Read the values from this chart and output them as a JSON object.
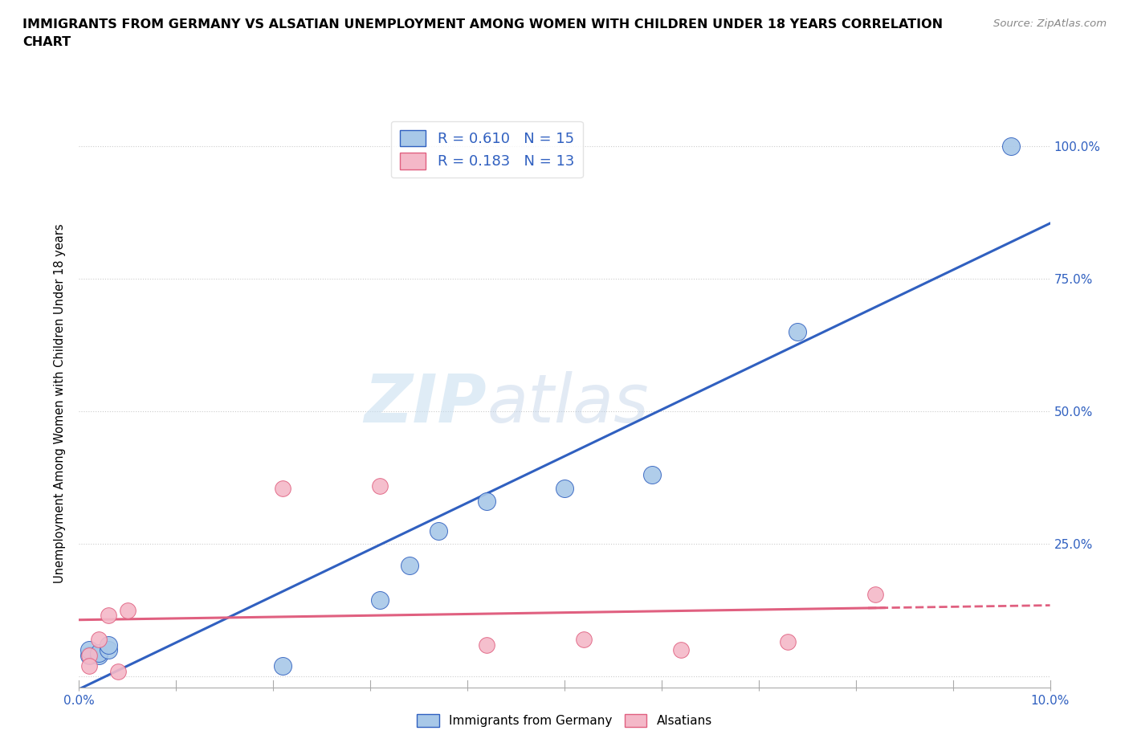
{
  "title_line1": "IMMIGRANTS FROM GERMANY VS ALSATIAN UNEMPLOYMENT AMONG WOMEN WITH CHILDREN UNDER 18 YEARS CORRELATION",
  "title_line2": "CHART",
  "source": "Source: ZipAtlas.com",
  "ylabel": "Unemployment Among Women with Children Under 18 years",
  "xlim": [
    0.0,
    0.1
  ],
  "ylim": [
    -0.02,
    1.05
  ],
  "xticks": [
    0.0,
    0.01,
    0.02,
    0.03,
    0.04,
    0.05,
    0.06,
    0.07,
    0.08,
    0.09,
    0.1
  ],
  "xticklabels": [
    "0.0%",
    "",
    "",
    "",
    "",
    "",
    "",
    "",
    "",
    "",
    "10.0%"
  ],
  "yticks": [
    0.0,
    0.25,
    0.5,
    0.75,
    1.0
  ],
  "yticklabels_right": [
    "",
    "25.0%",
    "50.0%",
    "75.0%",
    "100.0%"
  ],
  "germany_x": [
    0.001,
    0.001,
    0.002,
    0.002,
    0.003,
    0.003,
    0.021,
    0.031,
    0.034,
    0.037,
    0.042,
    0.05,
    0.059,
    0.074,
    0.096
  ],
  "germany_y": [
    0.04,
    0.05,
    0.04,
    0.045,
    0.05,
    0.06,
    0.02,
    0.145,
    0.21,
    0.275,
    0.33,
    0.355,
    0.38,
    0.65,
    1.0
  ],
  "alsatian_x": [
    0.001,
    0.001,
    0.002,
    0.003,
    0.004,
    0.005,
    0.021,
    0.031,
    0.042,
    0.052,
    0.062,
    0.073,
    0.082
  ],
  "alsatian_y": [
    0.04,
    0.02,
    0.07,
    0.115,
    0.01,
    0.125,
    0.355,
    0.36,
    0.06,
    0.07,
    0.05,
    0.065,
    0.155
  ],
  "germany_color": "#a8c8e8",
  "alsatian_color": "#f4b8c8",
  "germany_line_color": "#3060c0",
  "alsatian_line_color": "#e06080",
  "R_germany": 0.61,
  "N_germany": 15,
  "R_alsatian": 0.183,
  "N_alsatian": 13,
  "legend_label_germany": "Immigrants from Germany",
  "legend_label_alsatian": "Alsatians",
  "watermark_zip": "ZIP",
  "watermark_atlas": "atlas"
}
